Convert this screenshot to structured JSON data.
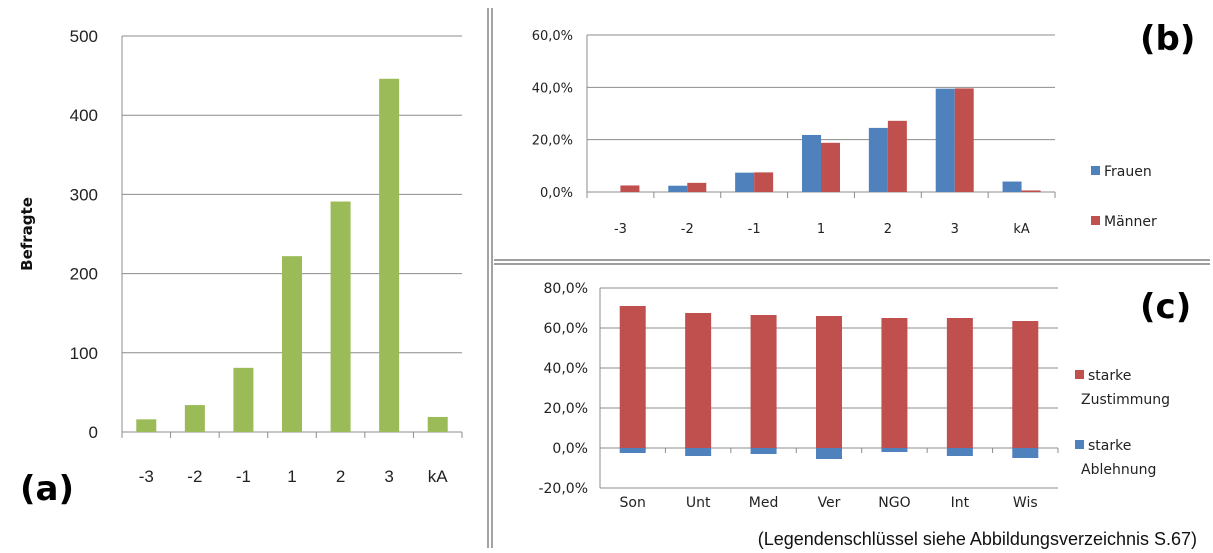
{
  "chart_data": [
    {
      "panel": "(a)",
      "type": "bar",
      "categories": [
        "-3",
        "-2",
        "-1",
        "1",
        "2",
        "3",
        "kA"
      ],
      "values": [
        16,
        34,
        81,
        222,
        291,
        446,
        19
      ],
      "ylabel": "Befragte",
      "ylim": [
        0,
        500
      ],
      "yticks": [
        "0",
        "100",
        "200",
        "300",
        "400",
        "500"
      ],
      "grid": true,
      "color": "#9bbb59"
    },
    {
      "panel": "(b)",
      "type": "bar",
      "categories": [
        "-3",
        "-2",
        "-1",
        "1",
        "2",
        "3",
        "kA"
      ],
      "ylim": [
        0,
        60
      ],
      "yticks": [
        "0,0%",
        "20,0%",
        "40,0%",
        "60,0%"
      ],
      "grid": true,
      "legend_position": "right",
      "series": [
        {
          "name": "Frauen",
          "color": "#4f81bd",
          "values": [
            0.0,
            2.4,
            7.4,
            21.8,
            24.5,
            39.5,
            4.0
          ]
        },
        {
          "name": "Männer",
          "color": "#c0504d",
          "values": [
            2.5,
            3.5,
            7.5,
            18.8,
            27.2,
            39.6,
            0.6
          ]
        }
      ]
    },
    {
      "panel": "(c)",
      "type": "bar",
      "categories": [
        "Son",
        "Unt",
        "Med",
        "Ver",
        "NGO",
        "Int",
        "Wis"
      ],
      "ylim": [
        -20,
        80
      ],
      "yticks": [
        "-20,0%",
        "0,0%",
        "20,0%",
        "40,0%",
        "60,0%",
        "80,0%"
      ],
      "grid": true,
      "legend_position": "right",
      "series": [
        {
          "name": "starke Zustimmung",
          "lines": [
            "starke",
            "Zustimmung"
          ],
          "color": "#c0504d",
          "values": [
            71.0,
            67.5,
            66.5,
            66.0,
            65.0,
            65.0,
            63.5
          ]
        },
        {
          "name": "starke Ablehnung",
          "lines": [
            "starke",
            "Ablehnung"
          ],
          "color": "#4f81bd",
          "values": [
            -2.5,
            -4.0,
            -3.0,
            -5.5,
            -2.0,
            -4.0,
            -5.0
          ]
        }
      ]
    }
  ],
  "footnote": "(Legendenschlüssel siehe Abbildungsverzeichnis S.67)"
}
